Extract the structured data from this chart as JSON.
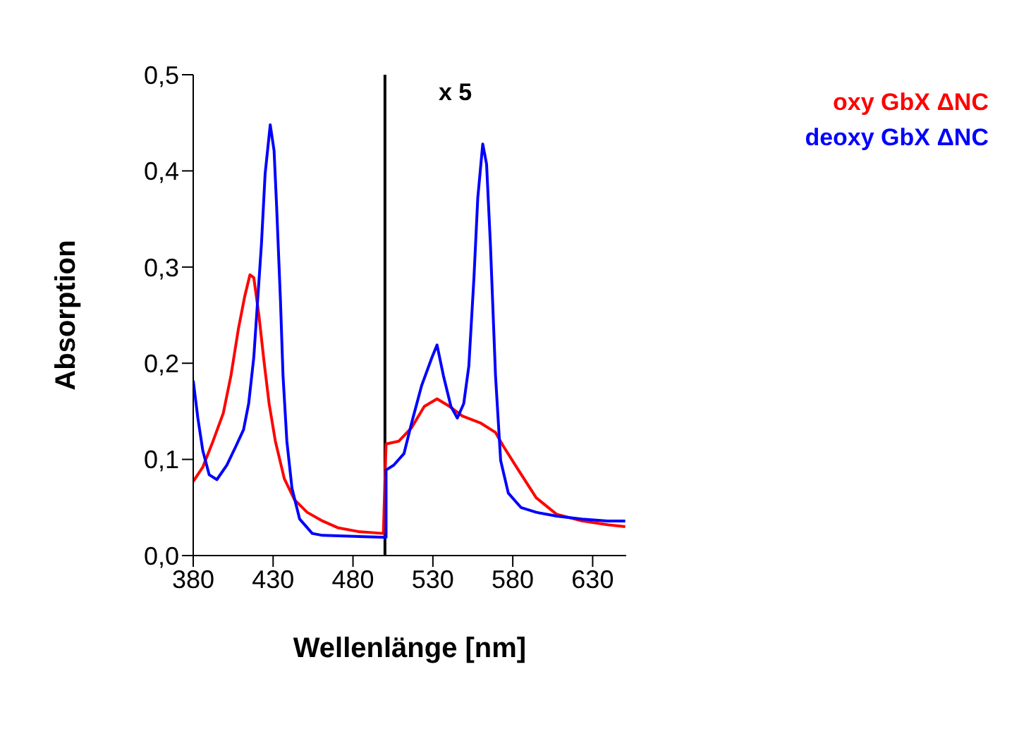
{
  "chart_data": {
    "type": "line",
    "xlabel": "Wellenlänge [nm]",
    "ylabel": "Absorption",
    "xlim": [
      380,
      651
    ],
    "xticks": [
      380,
      430,
      480,
      530,
      580,
      630
    ],
    "ylim": [
      0,
      0.5
    ],
    "yticks": [
      {
        "value": 0,
        "label": "0,0"
      },
      {
        "value": 0.1,
        "label": "0,1"
      },
      {
        "value": 0.2,
        "label": "0,2"
      },
      {
        "value": 0.3,
        "label": "0,3"
      },
      {
        "value": 0.4,
        "label": "0,4"
      },
      {
        "value": 0.5,
        "label": "0,5"
      }
    ],
    "grid": false,
    "legend": "top right",
    "marker": "none",
    "line_style": "solid",
    "ref_lines": [
      {
        "axis": "x",
        "value": 500,
        "label": "x 5",
        "color": "#000000"
      }
    ],
    "series": [
      {
        "name": "oxy GbX ΔNC",
        "color": "#ff0000",
        "x": [
          380,
          386,
          392.4,
          398.8,
          403.6,
          408.3,
          412.3,
          415.5,
          417.9,
          421.1,
          424.3,
          427.5,
          431.4,
          437,
          443.4,
          451.3,
          460.9,
          470.4,
          483.2,
          499,
          500.7,
          508.7,
          516.7,
          524.6,
          532.6,
          540.5,
          548.5,
          559.7,
          569.2,
          574,
          583.5,
          594.7,
          607.4,
          623.3,
          639.3,
          650.4
        ],
        "values": [
          0.077,
          0.092,
          0.119,
          0.148,
          0.187,
          0.236,
          0.27,
          0.292,
          0.289,
          0.25,
          0.202,
          0.158,
          0.119,
          0.08,
          0.058,
          0.045,
          0.036,
          0.029,
          0.025,
          0.023,
          0.116,
          0.119,
          0.133,
          0.155,
          0.163,
          0.155,
          0.145,
          0.138,
          0.128,
          0.114,
          0.089,
          0.06,
          0.043,
          0.036,
          0.032,
          0.03
        ]
      },
      {
        "name": "deoxy GbX ΔNC",
        "color": "#0000ff",
        "x": [
          380,
          382.9,
          386,
          390,
          394.8,
          401,
          406.8,
          411.5,
          414.7,
          417.9,
          420.3,
          422.7,
          425,
          428.2,
          430.6,
          432.2,
          434.6,
          436.2,
          438.6,
          441.8,
          446.6,
          454.5,
          460.9,
          499,
          500.7,
          500.7,
          505.5,
          511.9,
          516.7,
          523,
          529.4,
          532.6,
          536.6,
          541.3,
          545.3,
          549.3,
          552.5,
          555.7,
          558.1,
          561.2,
          563.6,
          566,
          569.2,
          572.4,
          577.2,
          585.1,
          594.7,
          607.4,
          623.3,
          639.3,
          650.4
        ],
        "values": [
          0.182,
          0.143,
          0.109,
          0.084,
          0.079,
          0.094,
          0.114,
          0.131,
          0.158,
          0.206,
          0.265,
          0.324,
          0.397,
          0.448,
          0.421,
          0.363,
          0.265,
          0.187,
          0.119,
          0.07,
          0.038,
          0.023,
          0.021,
          0.019,
          0.019,
          0.089,
          0.094,
          0.106,
          0.138,
          0.177,
          0.206,
          0.219,
          0.187,
          0.155,
          0.143,
          0.158,
          0.197,
          0.289,
          0.372,
          0.428,
          0.407,
          0.324,
          0.187,
          0.099,
          0.065,
          0.05,
          0.045,
          0.041,
          0.038,
          0.036,
          0.036
        ]
      }
    ]
  }
}
